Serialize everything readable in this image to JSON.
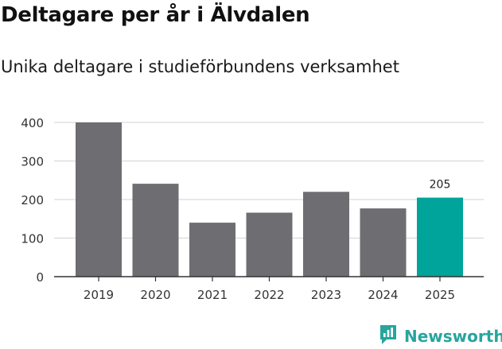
{
  "title": "Deltagare per år i Älvdalen",
  "subtitle": "Unika deltagare i studieförbundens verksamhet",
  "brand": {
    "name": "Newsworthy",
    "icon": "newsworthy-logo-icon",
    "color": "#27a59d"
  },
  "colors": {
    "bar": "#6e6d72",
    "highlight": "#00a49a",
    "grid": "#d9d9d9",
    "axis": "#333333"
  },
  "chart_data": {
    "type": "bar",
    "categories": [
      "2019",
      "2020",
      "2021",
      "2022",
      "2023",
      "2024",
      "2025"
    ],
    "values": [
      400,
      241,
      140,
      166,
      220,
      177,
      205
    ],
    "highlight_index": 6,
    "data_labels": {
      "6": "205"
    },
    "yticks": [
      0,
      100,
      200,
      300,
      400
    ],
    "ylim": [
      0,
      400
    ],
    "grid": true,
    "title": "Deltagare per år i Älvdalen",
    "subtitle": "Unika deltagare i studieförbundens verksamhet",
    "xlabel": "",
    "ylabel": ""
  }
}
